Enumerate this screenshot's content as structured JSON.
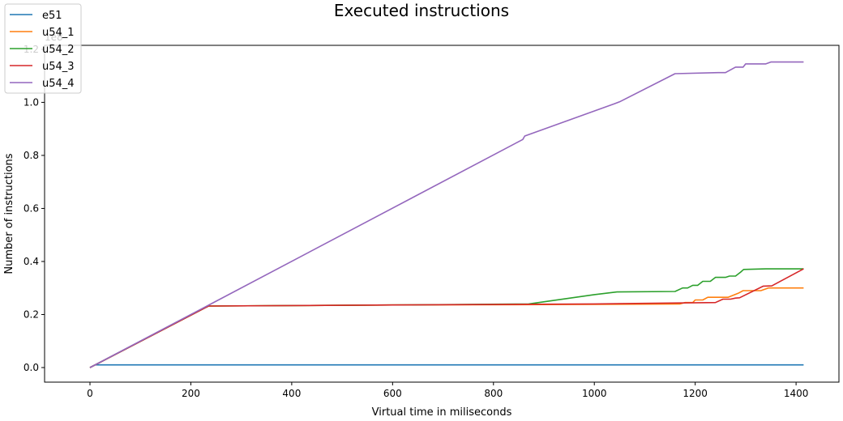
{
  "chart_data": {
    "type": "line",
    "title": "Executed instructions",
    "xlabel": "Virtual time in miliseconds",
    "ylabel": "Number of instructions",
    "y_offset_label": "1e8",
    "xlim": [
      -90,
      1485
    ],
    "ylim": [
      -0.055,
      1.215
    ],
    "x_ticks": [
      0,
      200,
      400,
      600,
      800,
      1000,
      1200,
      1400
    ],
    "y_ticks": [
      0.0,
      0.2,
      0.4,
      0.6,
      0.8,
      1.0,
      1.2
    ],
    "y_tick_labels": [
      "0.0",
      "0.2",
      "0.4",
      "0.6",
      "0.8",
      "1.0",
      "1.2"
    ],
    "grid": false,
    "legend_position": "top-left",
    "series": [
      {
        "name": "e51",
        "color": "#1f77b4",
        "points": [
          [
            0,
            0.0
          ],
          [
            10,
            0.01
          ],
          [
            1415,
            0.01
          ]
        ]
      },
      {
        "name": "u54_1",
        "color": "#ff7f0e",
        "points": [
          [
            0,
            0.0
          ],
          [
            235,
            0.232
          ],
          [
            600,
            0.236
          ],
          [
            1000,
            0.238
          ],
          [
            1170,
            0.24
          ],
          [
            1180,
            0.245
          ],
          [
            1195,
            0.245
          ],
          [
            1200,
            0.255
          ],
          [
            1215,
            0.255
          ],
          [
            1225,
            0.265
          ],
          [
            1265,
            0.265
          ],
          [
            1285,
            0.28
          ],
          [
            1295,
            0.29
          ],
          [
            1330,
            0.29
          ],
          [
            1345,
            0.3
          ],
          [
            1415,
            0.3
          ]
        ]
      },
      {
        "name": "u54_2",
        "color": "#2ca02c",
        "points": [
          [
            0,
            0.0
          ],
          [
            235,
            0.232
          ],
          [
            600,
            0.236
          ],
          [
            870,
            0.24
          ],
          [
            1000,
            0.275
          ],
          [
            1045,
            0.285
          ],
          [
            1160,
            0.287
          ],
          [
            1175,
            0.3
          ],
          [
            1185,
            0.3
          ],
          [
            1195,
            0.31
          ],
          [
            1205,
            0.31
          ],
          [
            1215,
            0.325
          ],
          [
            1230,
            0.325
          ],
          [
            1240,
            0.34
          ],
          [
            1260,
            0.34
          ],
          [
            1268,
            0.345
          ],
          [
            1280,
            0.345
          ],
          [
            1290,
            0.36
          ],
          [
            1296,
            0.37
          ],
          [
            1340,
            0.372
          ],
          [
            1415,
            0.372
          ]
        ]
      },
      {
        "name": "u54_3",
        "color": "#d62728",
        "points": [
          [
            0,
            0.0
          ],
          [
            235,
            0.232
          ],
          [
            600,
            0.236
          ],
          [
            1000,
            0.24
          ],
          [
            1240,
            0.245
          ],
          [
            1255,
            0.258
          ],
          [
            1270,
            0.258
          ],
          [
            1280,
            0.262
          ],
          [
            1288,
            0.263
          ],
          [
            1335,
            0.307
          ],
          [
            1352,
            0.308
          ],
          [
            1415,
            0.372
          ]
        ]
      },
      {
        "name": "u54_4",
        "color": "#9467bd",
        "points": [
          [
            0,
            0.0
          ],
          [
            235,
            0.235
          ],
          [
            858,
            0.86
          ],
          [
            862,
            0.873
          ],
          [
            875,
            0.882
          ],
          [
            1040,
            0.995
          ],
          [
            1050,
            1.002
          ],
          [
            1160,
            1.108
          ],
          [
            1245,
            1.112
          ],
          [
            1260,
            1.112
          ],
          [
            1280,
            1.133
          ],
          [
            1295,
            1.133
          ],
          [
            1300,
            1.145
          ],
          [
            1340,
            1.145
          ],
          [
            1350,
            1.152
          ],
          [
            1415,
            1.152
          ]
        ]
      }
    ]
  }
}
